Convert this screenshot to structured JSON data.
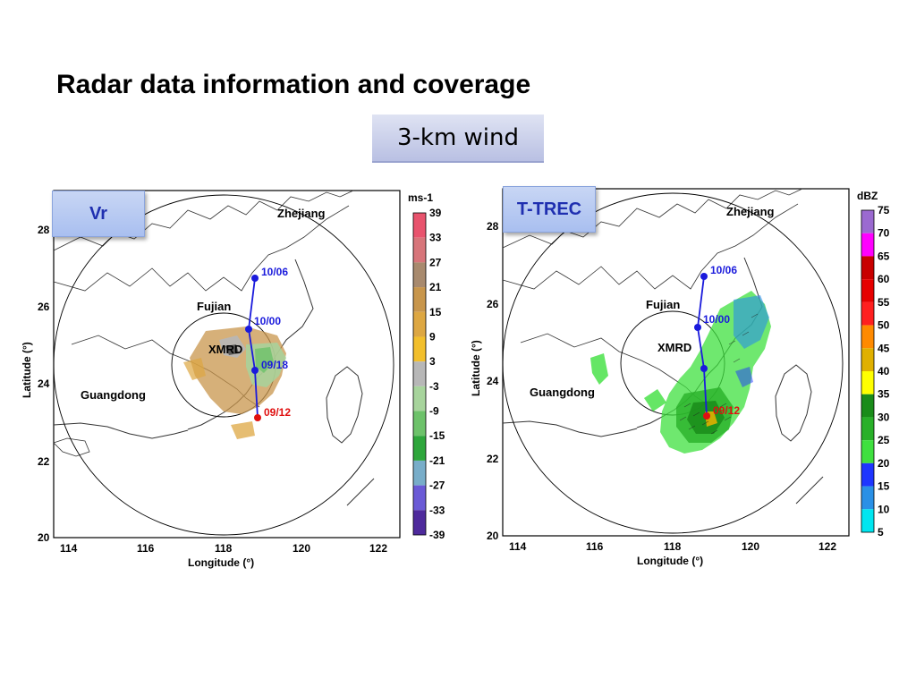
{
  "slide": {
    "title": "Radar data information and coverage",
    "subtitle": "3-km wind"
  },
  "panels": [
    {
      "tag": "Vr",
      "colorbar_unit": "ms-1",
      "colorbar_ticks": [
        "39",
        "33",
        "27",
        "21",
        "15",
        "9",
        "3",
        "-3",
        "-9",
        "-15",
        "-21",
        "-27",
        "-33",
        "-39"
      ],
      "colorbar_colors": [
        "#e8536d",
        "#d7757a",
        "#a88a6e",
        "#c8964c",
        "#dda742",
        "#f2bf2c",
        "#b7b7b7",
        "#a7d49c",
        "#6dc26a",
        "#2ea63b",
        "#78adc9",
        "#6a5ad6",
        "#4e2a9c"
      ]
    },
    {
      "tag": "T-TREC",
      "colorbar_unit": "dBZ",
      "colorbar_ticks": [
        "75",
        "70",
        "65",
        "60",
        "55",
        "50",
        "45",
        "40",
        "35",
        "30",
        "25",
        "20",
        "15",
        "10",
        "5"
      ],
      "colorbar_colors": [
        "#9b6ad0",
        "#ff00ff",
        "#c80000",
        "#e60000",
        "#ff2020",
        "#ff8a00",
        "#e0b000",
        "#ffff00",
        "#1a8c1a",
        "#29b029",
        "#3fe03f",
        "#1e35ff",
        "#2a90e6",
        "#00e6f0"
      ]
    }
  ],
  "map": {
    "xlabel": "Longitude (°)",
    "ylabel": "Latitude (°)",
    "xticks": [
      "114",
      "116",
      "118",
      "120",
      "122"
    ],
    "yticks": [
      "28",
      "26",
      "24",
      "22",
      "20"
    ],
    "places": {
      "zhejiang": "Zhejiang",
      "fujian": "Fujian",
      "guangdong": "Guangdong",
      "radar": "XMRD"
    },
    "track_times": [
      "10/06",
      "10/00",
      "09/18",
      "09/12"
    ]
  },
  "colors": {
    "track": "#1a1adc",
    "track_end": "#e01010"
  }
}
